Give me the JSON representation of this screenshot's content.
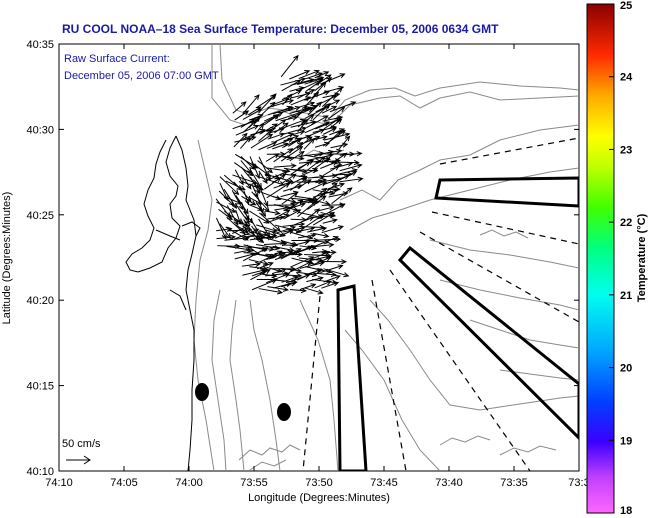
{
  "header": {
    "title": "RU COOL  NOAA–18  Sea Surface Temperature:  December 05, 2006 0634 GMT"
  },
  "annotation": {
    "line1": "Raw Surface Current:",
    "line2": "December 05, 2006 07:00 GMT"
  },
  "scale": {
    "label": "50 cm/s"
  },
  "axes": {
    "xlabel": "Longitude (Degrees:Minutes)",
    "ylabel": "Latitude (Degrees:Minutes)",
    "x_ticks": [
      "74:10",
      "74:05",
      "74:00",
      "73:55",
      "73:50",
      "73:45",
      "73:40",
      "73:35",
      "73:3"
    ],
    "y_ticks": [
      "40:35",
      "40:30",
      "40:25",
      "40:20",
      "40:15",
      "40:10"
    ]
  },
  "colorbar": {
    "label": "Temperature (°C)",
    "ticks": [
      "25",
      "24",
      "23",
      "22",
      "21",
      "20",
      "19",
      "18"
    ],
    "range": [
      18,
      25
    ]
  },
  "colors": {
    "title": "#1a1aa6",
    "annotation": "#1a1aa6",
    "contour": "#8a8a8a",
    "coast": "#000000"
  }
}
